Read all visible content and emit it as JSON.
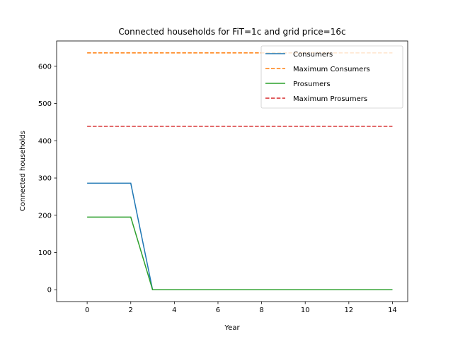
{
  "chart_data": {
    "type": "line",
    "title": "Connected households for FiT=1c and grid price=16c",
    "xlabel": "Year",
    "ylabel": "Connected households",
    "xlim": [
      -1.4,
      14.7
    ],
    "ylim": [
      -31.8,
      668.0
    ],
    "x_ticks": [
      0,
      2,
      4,
      6,
      8,
      10,
      12,
      14
    ],
    "y_ticks": [
      0,
      100,
      200,
      300,
      400,
      500,
      600
    ],
    "grid": false,
    "legend_position": "top-right",
    "x": [
      0,
      1,
      2,
      3,
      4,
      5,
      6,
      7,
      8,
      9,
      10,
      11,
      12,
      13,
      14
    ],
    "series": [
      {
        "name": "Consumers",
        "color": "#1f77b4",
        "style": "solid",
        "values": [
          286,
          286,
          286,
          0,
          0,
          0,
          0,
          0,
          0,
          0,
          0,
          0,
          0,
          0,
          0
        ]
      },
      {
        "name": "Maximum Consumers",
        "color": "#ff7f0e",
        "style": "dashed",
        "values": [
          636,
          636,
          636,
          636,
          636,
          636,
          636,
          636,
          636,
          636,
          636,
          636,
          636,
          636,
          636
        ]
      },
      {
        "name": "Prosumers",
        "color": "#2ca02c",
        "style": "solid",
        "values": [
          195,
          195,
          195,
          0,
          0,
          0,
          0,
          0,
          0,
          0,
          0,
          0,
          0,
          0,
          0
        ]
      },
      {
        "name": "Maximum Prosumers",
        "color": "#d62728",
        "style": "dashed",
        "values": [
          439,
          439,
          439,
          439,
          439,
          439,
          439,
          439,
          439,
          439,
          439,
          439,
          439,
          439,
          439
        ]
      }
    ]
  }
}
